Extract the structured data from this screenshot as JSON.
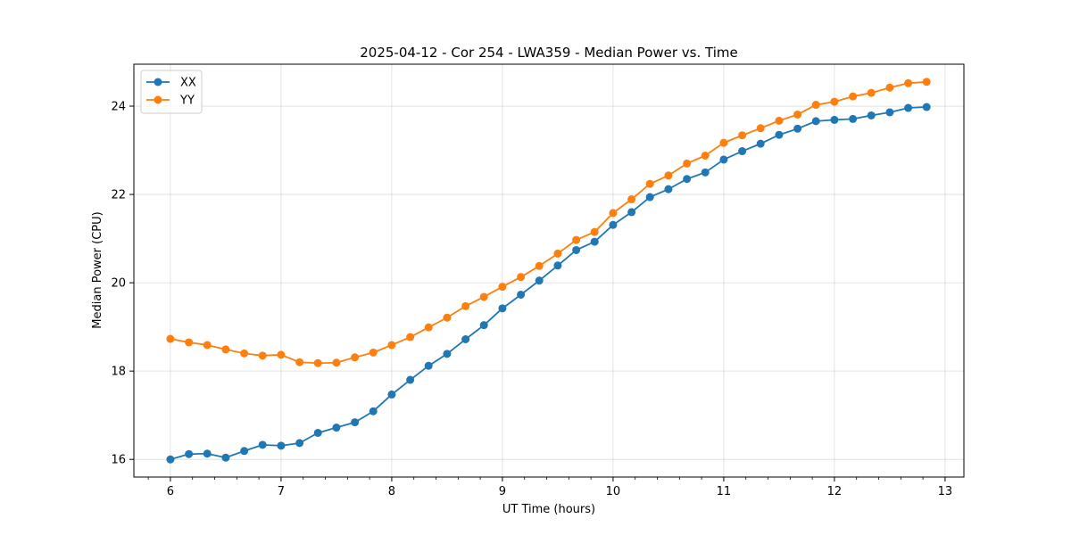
{
  "chart_data": {
    "type": "line",
    "title": "2025-04-12 - Cor 254 - LWA359 - Median Power vs. Time",
    "xlabel": "UT Time (hours)",
    "ylabel": "Median Power (CPU)",
    "xlim": [
      5.67,
      13.17
    ],
    "ylim": [
      15.6,
      24.95
    ],
    "x_ticks": [
      6,
      7,
      8,
      9,
      10,
      11,
      12,
      13
    ],
    "x_minor_step": 0.2,
    "y_ticks": [
      16,
      18,
      20,
      22,
      24
    ],
    "grid": true,
    "legend_position": "top-left",
    "x": [
      6.0,
      6.167,
      6.333,
      6.5,
      6.667,
      6.833,
      7.0,
      7.167,
      7.333,
      7.5,
      7.667,
      7.833,
      8.0,
      8.167,
      8.333,
      8.5,
      8.667,
      8.833,
      9.0,
      9.167,
      9.333,
      9.5,
      9.667,
      9.833,
      10.0,
      10.167,
      10.333,
      10.5,
      10.667,
      10.833,
      11.0,
      11.167,
      11.333,
      11.5,
      11.667,
      11.833,
      12.0,
      12.167,
      12.333,
      12.5,
      12.667,
      12.833
    ],
    "series": [
      {
        "name": "XX",
        "color": "#1f77b4",
        "values": [
          16.0,
          16.12,
          16.13,
          16.04,
          16.19,
          16.33,
          16.31,
          16.37,
          16.6,
          16.72,
          16.84,
          17.09,
          17.47,
          17.8,
          18.12,
          18.39,
          18.72,
          19.04,
          19.42,
          19.73,
          20.05,
          20.39,
          20.74,
          20.93,
          21.31,
          21.6,
          21.94,
          22.12,
          22.35,
          22.5,
          22.79,
          22.98,
          23.15,
          23.35,
          23.49,
          23.66,
          23.69,
          23.71,
          23.79,
          23.86,
          23.96,
          23.98
        ]
      },
      {
        "name": "YY",
        "color": "#ff7f0e",
        "values": [
          18.73,
          18.65,
          18.59,
          18.49,
          18.4,
          18.35,
          18.37,
          18.2,
          18.18,
          18.19,
          18.31,
          18.42,
          18.59,
          18.77,
          18.99,
          19.21,
          19.47,
          19.68,
          19.91,
          20.13,
          20.38,
          20.66,
          20.97,
          21.15,
          21.58,
          21.89,
          22.24,
          22.43,
          22.7,
          22.88,
          23.17,
          23.34,
          23.5,
          23.67,
          23.81,
          24.03,
          24.1,
          24.22,
          24.3,
          24.42,
          24.52,
          24.55
        ]
      }
    ]
  }
}
